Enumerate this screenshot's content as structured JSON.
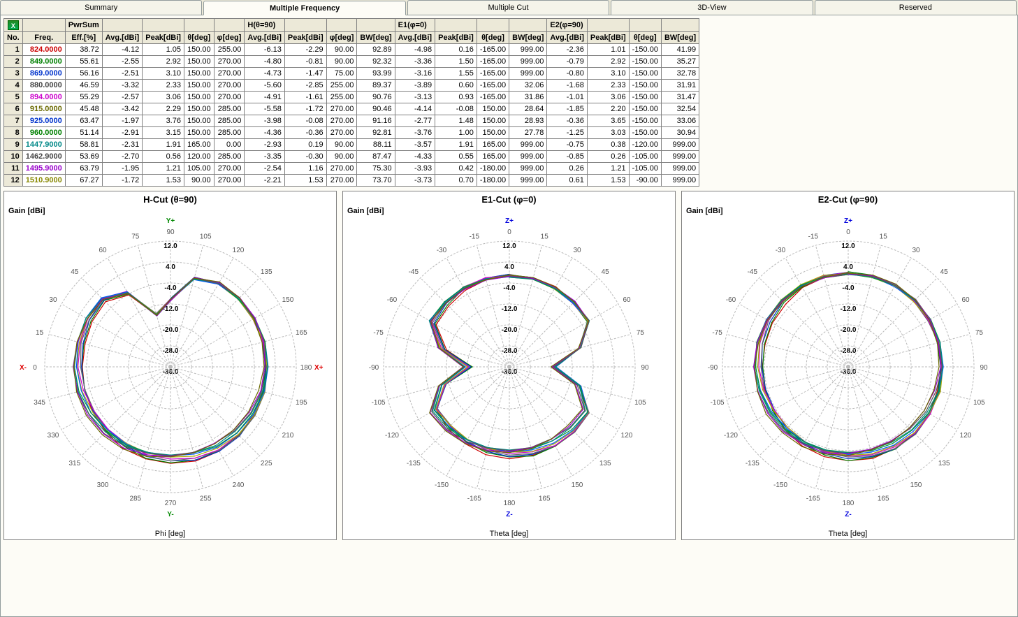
{
  "tabs": [
    {
      "label": "Summary",
      "active": false
    },
    {
      "label": "Multiple Frequency",
      "active": true
    },
    {
      "label": "Multiple Cut",
      "active": false
    },
    {
      "label": "3D-View",
      "active": false
    },
    {
      "label": "Reserved",
      "active": false
    }
  ],
  "excel_icon_label": "X",
  "table": {
    "group_headers": [
      "",
      "",
      "PwrSum",
      "",
      "",
      "",
      "",
      "H(θ=90)",
      "",
      "",
      "",
      "E1(φ=0)",
      "",
      "",
      "",
      "E2(φ=90)",
      "",
      "",
      ""
    ],
    "col_headers": [
      "No.",
      "Freq.",
      "Eff.[%]",
      "Avg.[dBi]",
      "Peak[dBi]",
      "θ[deg]",
      "φ[deg]",
      "Avg.[dBi]",
      "Peak[dBi]",
      "φ[deg]",
      "BW[deg]",
      "Avg.[dBi]",
      "Peak[dBi]",
      "θ[deg]",
      "BW[deg]",
      "Avg.[dBi]",
      "Peak[dBi]",
      "θ[deg]",
      "BW[deg]"
    ],
    "freq_colors": [
      "#cc0000",
      "#008000",
      "#0033cc",
      "#444",
      "#cc00cc",
      "#6a6a00",
      "#0033cc",
      "#008000",
      "#008888",
      "#444",
      "#9900cc",
      "#888800"
    ],
    "rows": [
      [
        1,
        "824.0000",
        38.72,
        -4.12,
        1.05,
        150.0,
        255.0,
        -6.13,
        -2.29,
        90.0,
        92.89,
        -4.98,
        0.16,
        -165.0,
        999.0,
        -2.36,
        1.01,
        -150.0,
        41.99
      ],
      [
        2,
        "849.0000",
        55.61,
        -2.55,
        2.92,
        150.0,
        270.0,
        -4.8,
        -0.81,
        90.0,
        92.32,
        -3.36,
        1.5,
        -165.0,
        999.0,
        -0.79,
        2.92,
        -150.0,
        35.27
      ],
      [
        3,
        "869.0000",
        56.16,
        -2.51,
        3.1,
        150.0,
        270.0,
        -4.73,
        -1.47,
        75.0,
        93.99,
        -3.16,
        1.55,
        -165.0,
        999.0,
        -0.8,
        3.1,
        -150.0,
        32.78
      ],
      [
        4,
        "880.0000",
        46.59,
        -3.32,
        2.33,
        150.0,
        270.0,
        -5.6,
        -2.85,
        255.0,
        89.37,
        -3.89,
        0.6,
        -165.0,
        32.06,
        -1.68,
        2.33,
        -150.0,
        31.91
      ],
      [
        5,
        "894.0000",
        55.29,
        -2.57,
        3.06,
        150.0,
        270.0,
        -4.91,
        -1.61,
        255.0,
        90.76,
        -3.13,
        0.93,
        -165.0,
        31.86,
        -1.01,
        3.06,
        -150.0,
        31.47
      ],
      [
        6,
        "915.0000",
        45.48,
        -3.42,
        2.29,
        150.0,
        285.0,
        -5.58,
        -1.72,
        270.0,
        90.46,
        -4.14,
        -0.08,
        150.0,
        28.64,
        -1.85,
        2.2,
        -150.0,
        32.54
      ],
      [
        7,
        "925.0000",
        63.47,
        -1.97,
        3.76,
        150.0,
        285.0,
        -3.98,
        -0.08,
        270.0,
        91.16,
        -2.77,
        1.48,
        150.0,
        28.93,
        -0.36,
        3.65,
        -150.0,
        33.06
      ],
      [
        8,
        "960.0000",
        51.14,
        -2.91,
        3.15,
        150.0,
        285.0,
        -4.36,
        -0.36,
        270.0,
        92.81,
        -3.76,
        1.0,
        150.0,
        27.78,
        -1.25,
        3.03,
        -150.0,
        30.94
      ],
      [
        9,
        "1447.9000",
        58.81,
        -2.31,
        1.91,
        165.0,
        0.0,
        -2.93,
        0.19,
        90.0,
        88.11,
        -3.57,
        1.91,
        165.0,
        999.0,
        -0.75,
        0.38,
        -120.0,
        999.0
      ],
      [
        10,
        "1462.9000",
        53.69,
        -2.7,
        0.56,
        120.0,
        285.0,
        -3.35,
        -0.3,
        90.0,
        87.47,
        -4.33,
        0.55,
        165.0,
        999.0,
        -0.85,
        0.26,
        -105.0,
        999.0
      ],
      [
        11,
        "1495.9000",
        63.79,
        -1.95,
        1.21,
        105.0,
        270.0,
        -2.54,
        1.16,
        270.0,
        75.3,
        -3.93,
        0.42,
        -180.0,
        999.0,
        0.26,
        1.21,
        -105.0,
        999.0
      ],
      [
        12,
        "1510.9000",
        67.27,
        -1.72,
        1.53,
        90.0,
        270.0,
        -2.21,
        1.53,
        270.0,
        73.7,
        -3.73,
        0.7,
        -180.0,
        999.0,
        0.61,
        1.53,
        -90.0,
        999.0
      ]
    ]
  },
  "polar": {
    "gain_label": "Gain [dBi]",
    "ring_values": [
      12.0,
      4.0,
      -4.0,
      -12.0,
      -20.0,
      -28.0,
      -36.0
    ],
    "ring_min": -36.0,
    "ring_max": 12.0,
    "angle_step": 15,
    "trace_colors": [
      "#cc0000",
      "#008000",
      "#0033cc",
      "#666666",
      "#cc00cc",
      "#aaaa00",
      "#0055ff",
      "#009933",
      "#008888",
      "#555555",
      "#9900cc",
      "#6a6a00"
    ],
    "background_color": "#ffffff",
    "grid_color": "#bbbbbb",
    "charts": [
      {
        "title": "H-Cut (θ=90)",
        "xlabel": "Phi [deg]",
        "angle_range": [
          0,
          360
        ],
        "angle_labels_mode": "0-360",
        "axis_pos": {
          "label": "X+",
          "color": "#d00"
        },
        "axis_neg": {
          "label": "X-",
          "color": "#d00"
        },
        "axis_top": {
          "label": "Y+",
          "color": "#080"
        },
        "axis_bot": {
          "label": "Y-",
          "color": "#080"
        },
        "notch": {
          "center_deg": 350,
          "depth_db": -22,
          "width_deg": 35
        },
        "base_gain": 0
      },
      {
        "title": "E1-Cut (φ=0)",
        "xlabel": "Theta [deg]",
        "angle_range": [
          -180,
          180
        ],
        "angle_labels_mode": "+-180",
        "axis_pos": {
          "label": "",
          "color": "#000"
        },
        "axis_neg": {
          "label": "",
          "color": "#000"
        },
        "axis_top": {
          "label": "Z+",
          "color": "#00d"
        },
        "axis_bot": {
          "label": "Z-",
          "color": "#00d"
        },
        "lobes": true,
        "base_gain": -2
      },
      {
        "title": "E2-Cut (φ=90)",
        "xlabel": "Theta [deg]",
        "angle_range": [
          -180,
          180
        ],
        "angle_labels_mode": "+-180",
        "axis_pos": {
          "label": "",
          "color": "#000"
        },
        "axis_neg": {
          "label": "",
          "color": "#000"
        },
        "axis_top": {
          "label": "Z+",
          "color": "#00d"
        },
        "axis_bot": {
          "label": "Z-",
          "color": "#00d"
        },
        "base_gain": -1
      }
    ]
  }
}
